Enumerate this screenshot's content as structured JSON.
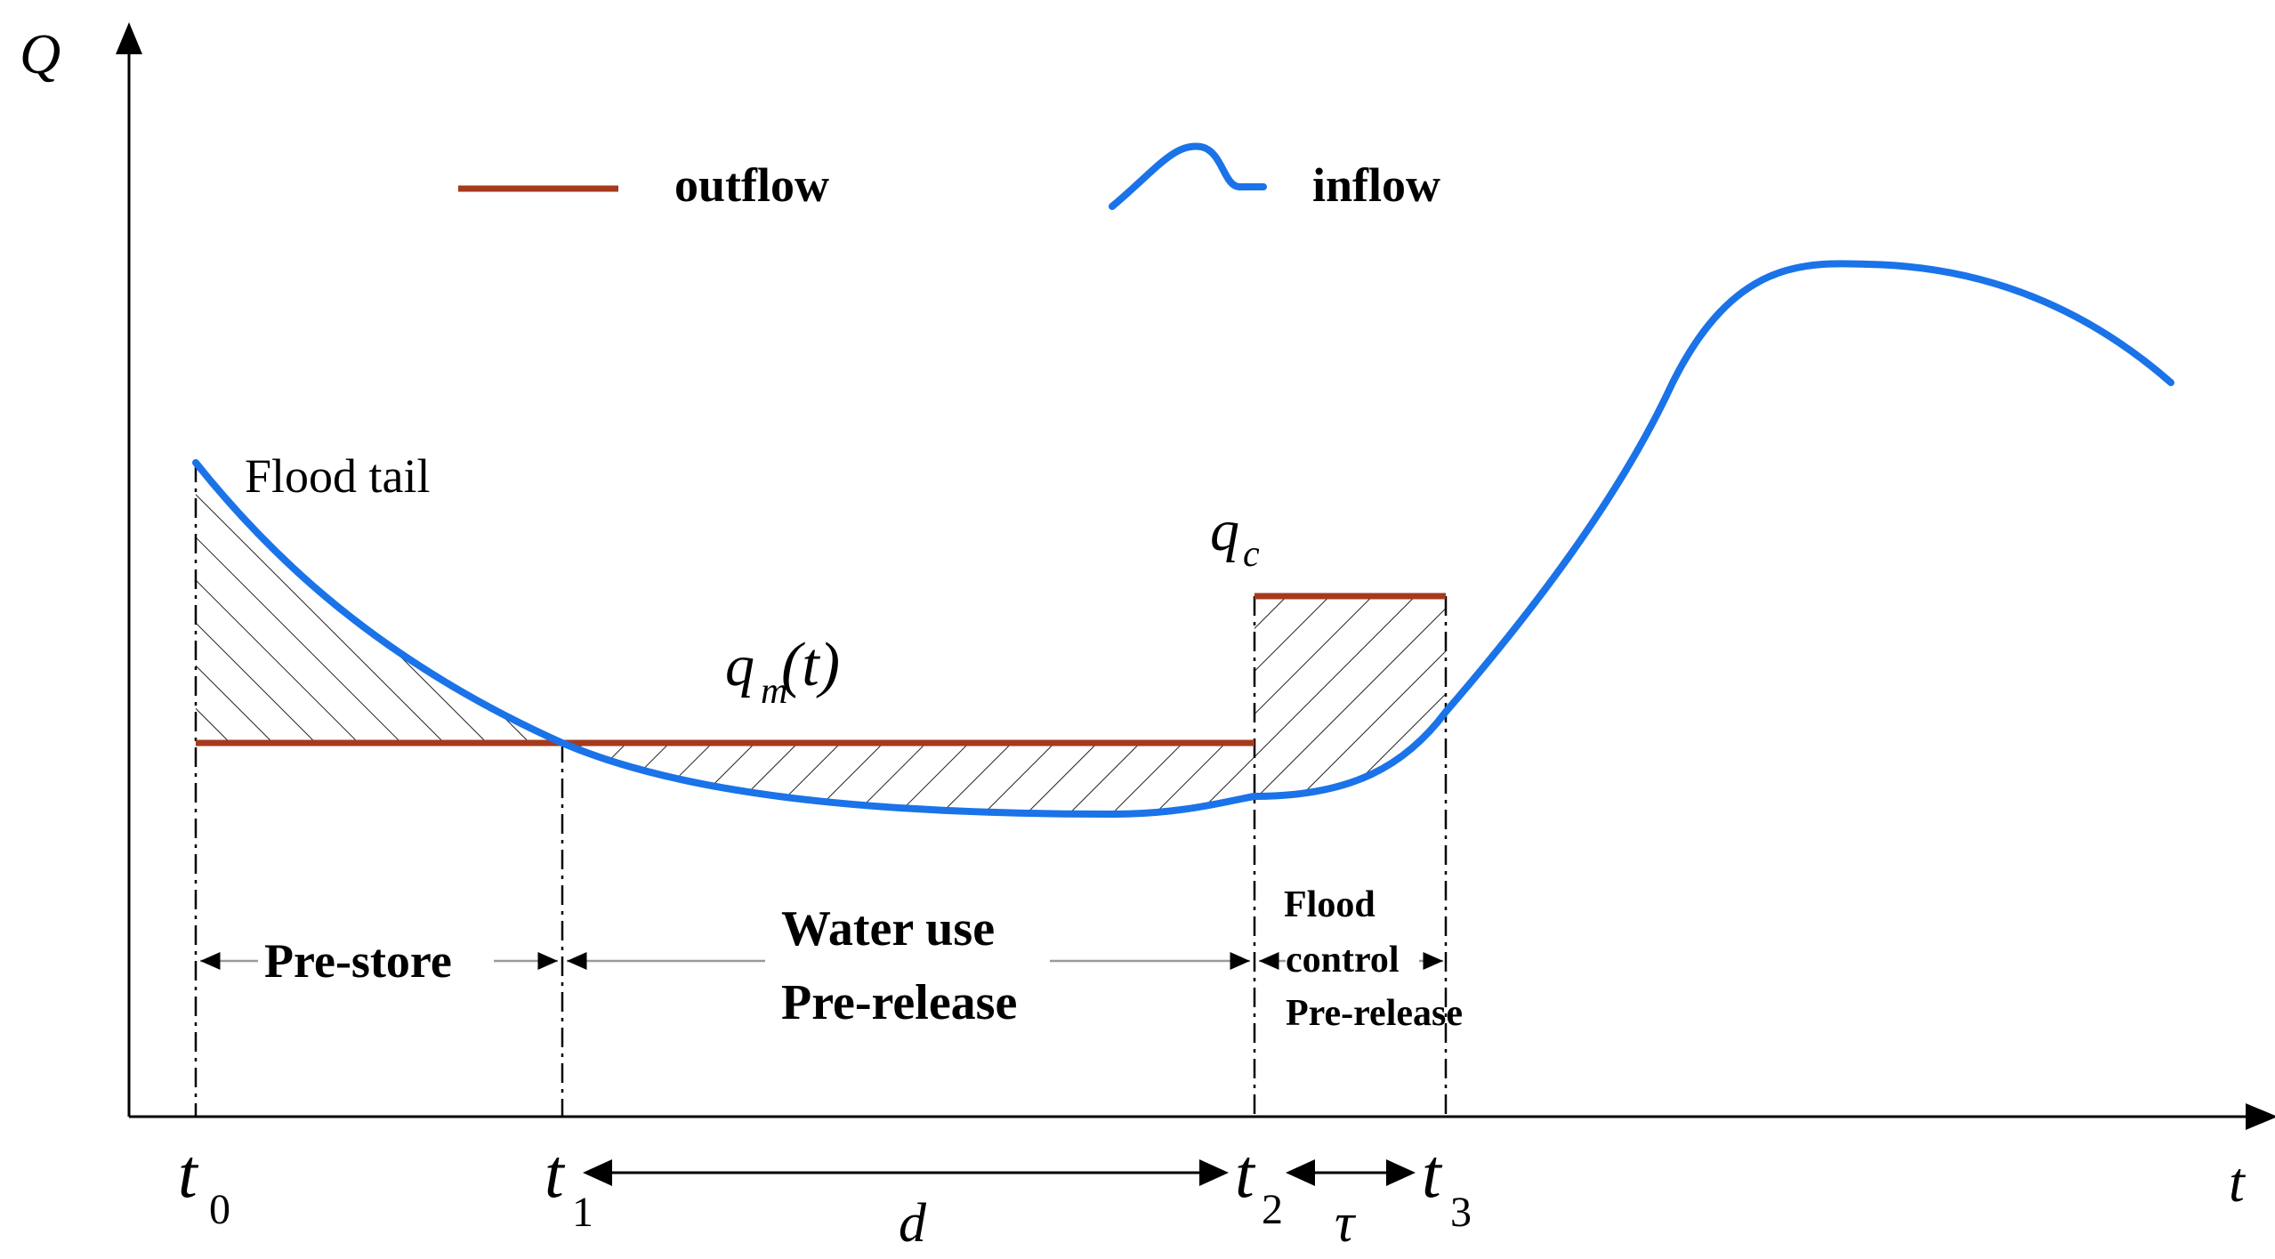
{
  "axes": {
    "y_label": "Q",
    "x_label": "t"
  },
  "legend": {
    "outflow": "outflow",
    "inflow": "inflow"
  },
  "labels": {
    "flood_tail": "Flood tail",
    "qm": "q",
    "qm_sub": "m",
    "qm_arg": "(t)",
    "qc": "q",
    "qc_sub": "c",
    "pre_store": "Pre-store",
    "water_use_line1": "Water use",
    "water_use_line2": "Pre-release",
    "flood_control_line1": "Flood",
    "flood_control_line2": "control",
    "flood_control_line3": "Pre-release"
  },
  "ticks": {
    "t0": "t",
    "t0_sub": "0",
    "t1": "t",
    "t1_sub": "1",
    "t2": "t",
    "t2_sub": "2",
    "t3": "t",
    "t3_sub": "3"
  },
  "spans": {
    "d": "d",
    "tau": "τ"
  },
  "colors": {
    "inflow": "#1a73e8",
    "outflow": "#a53a1c",
    "axis": "#000000",
    "hatch": "#222222",
    "arrow_line": "#9a9a9a"
  }
}
